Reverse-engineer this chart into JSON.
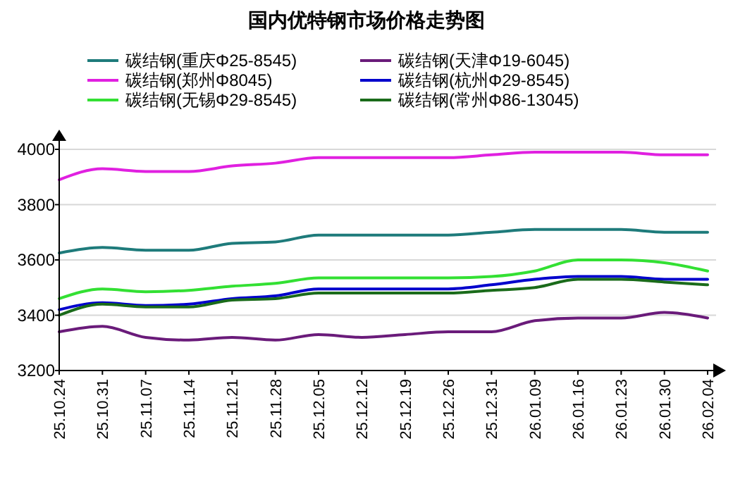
{
  "chart_data": {
    "type": "line",
    "title": "国内优特钢市场价格走势图",
    "categories": [
      "25.10.24",
      "25.10.31",
      "25.11.07",
      "25.11.14",
      "25.11.21",
      "25.11.28",
      "25.12.05",
      "25.12.12",
      "25.12.19",
      "25.12.26",
      "25.12.31",
      "26.01.09",
      "26.01.16",
      "26.01.23",
      "26.01.30",
      "26.02.04"
    ],
    "series": [
      {
        "name": "碳结钢(重庆Φ25-8545)",
        "color": "#1e7b7b",
        "values": [
          3625,
          3645,
          3635,
          3635,
          3660,
          3665,
          3690,
          3690,
          3690,
          3690,
          3700,
          3710,
          3710,
          3710,
          3700,
          3700
        ]
      },
      {
        "name": "碳结钢(天津Φ19-6045)",
        "color": "#6a1b7a",
        "values": [
          3340,
          3360,
          3320,
          3310,
          3320,
          3310,
          3330,
          3320,
          3330,
          3340,
          3340,
          3380,
          3390,
          3390,
          3410,
          3390
        ]
      },
      {
        "name": "碳结钢(郑州Φ8045)",
        "color": "#e020e0",
        "values": [
          3890,
          3930,
          3920,
          3920,
          3940,
          3950,
          3970,
          3970,
          3970,
          3970,
          3980,
          3990,
          3990,
          3990,
          3980,
          3980
        ]
      },
      {
        "name": "碳结钢(杭州Φ29-8545)",
        "color": "#0000cc",
        "values": [
          3420,
          3445,
          3435,
          3440,
          3460,
          3470,
          3495,
          3495,
          3495,
          3495,
          3510,
          3530,
          3540,
          3540,
          3530,
          3530
        ]
      },
      {
        "name": "碳结钢(无锡Φ29-8545)",
        "color": "#33e033",
        "values": [
          3460,
          3495,
          3485,
          3490,
          3505,
          3515,
          3535,
          3535,
          3535,
          3535,
          3540,
          3560,
          3600,
          3600,
          3590,
          3560
        ]
      },
      {
        "name": "碳结钢(常州Φ86-13045)",
        "color": "#1a6b1a",
        "values": [
          3400,
          3440,
          3430,
          3430,
          3455,
          3460,
          3480,
          3480,
          3480,
          3480,
          3490,
          3500,
          3530,
          3530,
          3520,
          3510
        ]
      }
    ],
    "ylim": [
      3200,
      4000
    ],
    "yticks": [
      3200,
      3400,
      3600,
      3800,
      4000
    ],
    "grid": "y",
    "legend": "top"
  }
}
